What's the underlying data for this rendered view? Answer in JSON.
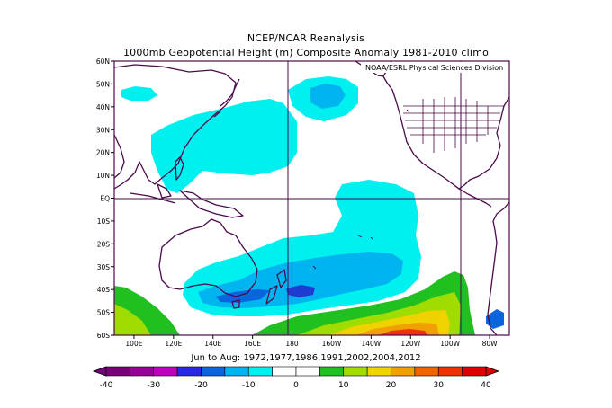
{
  "header": {
    "title": "NCEP/NCAR Reanalysis",
    "subtitle": "1000mb Geopotential Height (m) Composite Anomaly 1981-2010 climo"
  },
  "map": {
    "credit": "NOAA/ESRL Physical Sciences Division",
    "lat_labels": [
      "60N",
      "50N",
      "40N",
      "30N",
      "20N",
      "10N",
      "EQ",
      "10S",
      "20S",
      "30S",
      "40S",
      "50S",
      "60S"
    ],
    "lon_labels": [
      "100E",
      "120E",
      "140E",
      "160E",
      "180",
      "160W",
      "140W",
      "120W",
      "100W",
      "80W"
    ],
    "region": "Pacific basin, 90E to 70W, 60S to 60N",
    "shading_colors": {
      "neg_light": "#00f0f0",
      "neg_mid": "#00b4f0",
      "neg_dark": "#0a64dc",
      "neg_deep": "#1e3cd2",
      "pos_green": "#20c020",
      "pos_lime": "#a0dc00",
      "pos_yellow": "#f0d200",
      "pos_orange": "#f08c00",
      "pos_red": "#f03200"
    }
  },
  "footer": {
    "composite_label": "Jun to Aug: 1972,1977,1986,1991,2002,2004,2012"
  },
  "colorbar": {
    "tick_labels": [
      "-40",
      "-30",
      "-20",
      "-10",
      "0",
      "10",
      "20",
      "30",
      "40"
    ],
    "colors": [
      "#780078",
      "#960096",
      "#be00be",
      "#2828e6",
      "#0a64dc",
      "#00b4f0",
      "#00f0f0",
      "#ffffff",
      "#ffffff",
      "#20c020",
      "#a0dc00",
      "#f0d200",
      "#f0a000",
      "#f06400",
      "#f03200",
      "#dc0000"
    ]
  }
}
